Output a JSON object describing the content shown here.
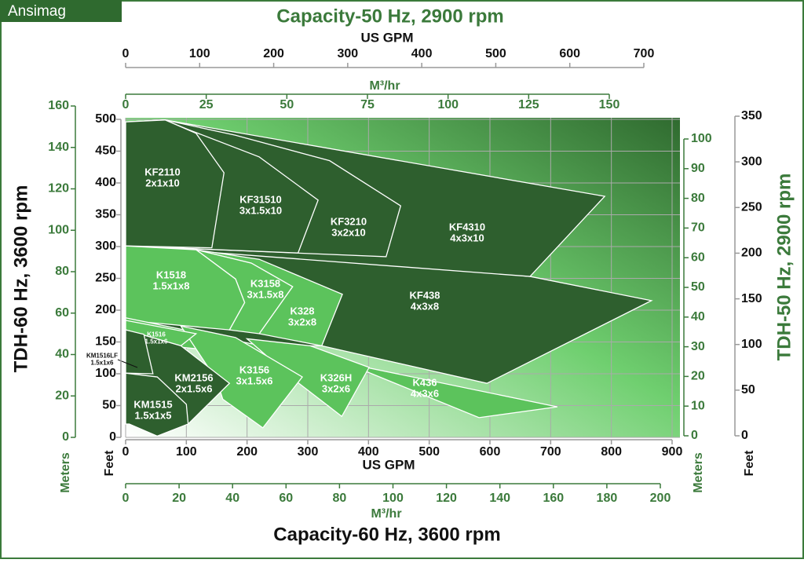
{
  "badge": "Ansimag",
  "chart_data": {
    "type": "area",
    "title": "Capacity-60 Hz, 3600 rpm",
    "title_top": "Capacity-50 Hz, 2900 rpm",
    "y_title_left": "TDH-60 Hz, 3600 rpm",
    "y_title_right": "TDH-50 Hz, 2900 rpm",
    "grid": true,
    "axes": {
      "x_gpm_60": {
        "label": "US GPM",
        "lim": [
          0,
          900
        ],
        "ticks": [
          0,
          100,
          200,
          300,
          400,
          500,
          600,
          700,
          800,
          900
        ]
      },
      "x_m3h_60": {
        "label": "M³/hr",
        "lim": [
          0,
          200
        ],
        "ticks": [
          0,
          20,
          40,
          60,
          80,
          100,
          120,
          140,
          160,
          180,
          200
        ]
      },
      "x_gpm_50": {
        "label": "US GPM",
        "lim": [
          0,
          700
        ],
        "ticks": [
          0,
          100,
          200,
          300,
          400,
          500,
          600,
          700
        ]
      },
      "x_m3h_50": {
        "label": "M³/hr",
        "lim": [
          0,
          150
        ],
        "ticks": [
          0,
          25,
          50,
          75,
          100,
          125,
          150
        ]
      },
      "y_ft_60": {
        "label": "Feet",
        "lim": [
          0,
          500
        ],
        "ticks": [
          0,
          50,
          100,
          150,
          200,
          250,
          300,
          350,
          400,
          450,
          500
        ]
      },
      "y_m_60": {
        "label": "Meters",
        "lim": [
          0,
          160
        ],
        "ticks": [
          0,
          20,
          40,
          60,
          80,
          100,
          120,
          140,
          160
        ]
      },
      "y_m_50": {
        "label": "Meters",
        "lim": [
          0,
          100
        ],
        "ticks": [
          0,
          10,
          20,
          30,
          40,
          50,
          60,
          70,
          80,
          90,
          100
        ]
      },
      "y_ft_50": {
        "label": "Feet",
        "lim": [
          0,
          350
        ],
        "ticks": [
          0,
          50,
          100,
          150,
          200,
          250,
          300,
          350
        ]
      }
    },
    "regions": [
      {
        "name": "KF438",
        "size": "4x3x8",
        "color": "#2e5f2e",
        "x": [
          0,
          330,
          666,
          866,
          595,
          323,
          0
        ],
        "y": [
          301,
          283,
          253,
          215,
          85,
          144,
          144
        ]
      },
      {
        "name": "KF4310",
        "size": "4x3x10",
        "color": "#2e5f2e",
        "x": [
          0,
          65,
          789,
          666,
          0
        ],
        "y": [
          496,
          499,
          379,
          253,
          301
        ]
      },
      {
        "name": "KF3210",
        "size": "3x2x10",
        "color": "#2e5f2e",
        "x": [
          0,
          65,
          181,
          336,
          453,
          429,
          0
        ],
        "y": [
          496,
          499,
          475,
          435,
          364,
          284,
          301
        ]
      },
      {
        "name": "KF31510",
        "size": "3x1.5x10",
        "color": "#2e5f2e",
        "x": [
          0,
          65,
          103,
          220,
          317,
          284,
          0
        ],
        "y": [
          496,
          499,
          484,
          441,
          373,
          290,
          301
        ]
      },
      {
        "name": "KF2110",
        "size": "2x1x10",
        "color": "#2e5f2e",
        "x": [
          0,
          65,
          116,
          162,
          142,
          0
        ],
        "y": [
          496,
          499,
          478,
          416,
          298,
          301
        ]
      },
      {
        "name": "K328",
        "size": "3x2x8",
        "color": "#5cc35c",
        "x": [
          116,
          220,
          357,
          323,
          220,
          275,
          207
        ],
        "y": [
          295,
          280,
          225,
          144,
          163,
          237,
          274
        ]
      },
      {
        "name": "K3158",
        "size": "3x1.5x8",
        "color": "#5cc35c",
        "x": [
          116,
          207,
          275,
          220,
          171,
          196,
          181
        ],
        "y": [
          295,
          274,
          237,
          163,
          169,
          212,
          249
        ]
      },
      {
        "name": "K1518",
        "size": "1.5x1x8",
        "color": "#5cc35c",
        "x": [
          0,
          116,
          181,
          196,
          171,
          0
        ],
        "y": [
          301,
          295,
          249,
          212,
          169,
          184
        ]
      },
      {
        "name": "K436",
        "size": "4x3x6",
        "color": "#5cc35c",
        "x": [
          0,
          711,
          582,
          362,
          0
        ],
        "y": [
          188,
          48,
          31,
          117,
          150
        ]
      },
      {
        "name": "K326H",
        "size": "3x2x6",
        "color": "#5cc35c",
        "x": [
          200,
          304,
          401,
          356,
          246,
          230
        ],
        "y": [
          155,
          144,
          110,
          33,
          114,
          130
        ]
      },
      {
        "name": "K3156",
        "size": "3x1.5x6",
        "color": "#5cc35c",
        "x": [
          91,
          181,
          291,
          226,
          160,
          150
        ],
        "y": [
          175,
          157,
          95,
          15,
          60,
          90
        ]
      },
      {
        "name": "K1516",
        "size": "1.5x1x6",
        "color": "#5cc35c",
        "x": [
          0,
          116,
          91,
          0
        ],
        "y": [
          184,
          163,
          144,
          169
        ]
      },
      {
        "name": "KM2156",
        "size": "2x1.5x6",
        "color": "#2e5f2e",
        "x": [
          0,
          91,
          171,
          103,
          0
        ],
        "y": [
          169,
          144,
          85,
          21,
          107
        ]
      },
      {
        "name": "KM1516LF",
        "size": "1.5x1x6",
        "color": "#2e5f2e",
        "x": [
          0,
          30,
          45,
          0
        ],
        "y": [
          169,
          162,
          100,
          101
        ]
      },
      {
        "name": "KM1515",
        "size": "1.5x1x5",
        "color": "#2e5f2e",
        "x": [
          0,
          52,
          100,
          103,
          52,
          6,
          0
        ],
        "y": [
          101,
          95,
          52,
          21,
          2,
          21,
          21
        ]
      }
    ]
  }
}
